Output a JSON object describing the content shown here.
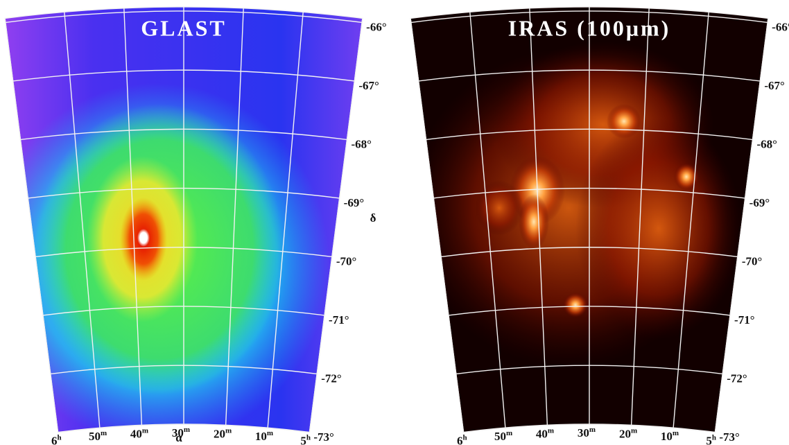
{
  "panels": [
    {
      "title": "GLAST",
      "dec_labels": [
        "-66°",
        "-67°",
        "-68°",
        "-69°",
        "-70°",
        "-71°",
        "-72°",
        "-73°"
      ]
    },
    {
      "title": "IRAS (100μm)",
      "dec_labels": [
        "-66°",
        "-67°",
        "-68°",
        "-69°",
        "-70°",
        "-71°",
        "-72°",
        "-73°"
      ]
    }
  ],
  "ra_labels": [
    {
      "num": "6",
      "unit": "h"
    },
    {
      "num": "50",
      "unit": "m"
    },
    {
      "num": "40",
      "unit": "m"
    },
    {
      "num": "30",
      "unit": "m"
    },
    {
      "num": "20",
      "unit": "m"
    },
    {
      "num": "10",
      "unit": "m"
    },
    {
      "num": "5",
      "unit": "h"
    }
  ],
  "ra_axis": "α",
  "dec_axis": "δ"
}
